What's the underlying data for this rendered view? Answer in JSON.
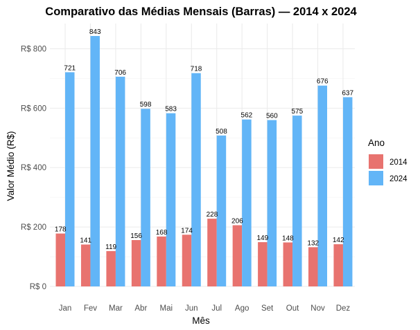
{
  "chart_data": {
    "type": "bar",
    "title": "Comparativo das Médias Mensais (Barras) — 2014 x 2024",
    "xlabel": "Mês",
    "ylabel": "Valor Médio (R$)",
    "categories": [
      "Jan",
      "Fev",
      "Mar",
      "Abr",
      "Mai",
      "Jun",
      "Jul",
      "Ago",
      "Set",
      "Out",
      "Nov",
      "Dez"
    ],
    "series": [
      {
        "name": "2014",
        "color": "#E8736F",
        "values": [
          178,
          141,
          119,
          156,
          168,
          174,
          228,
          206,
          149,
          148,
          132,
          142
        ]
      },
      {
        "name": "2024",
        "color": "#62B5F7",
        "values": [
          721,
          843,
          706,
          598,
          583,
          718,
          508,
          562,
          560,
          575,
          676,
          637
        ]
      }
    ],
    "yticks": [
      0,
      200,
      400,
      600,
      800
    ],
    "ytick_labels": [
      "R$ 0",
      "R$ 200",
      "R$ 400",
      "R$ 600",
      "R$ 800"
    ],
    "ylim": [
      0,
      885
    ],
    "grid": true,
    "legend": {
      "title": "Ano",
      "position": "right"
    }
  }
}
